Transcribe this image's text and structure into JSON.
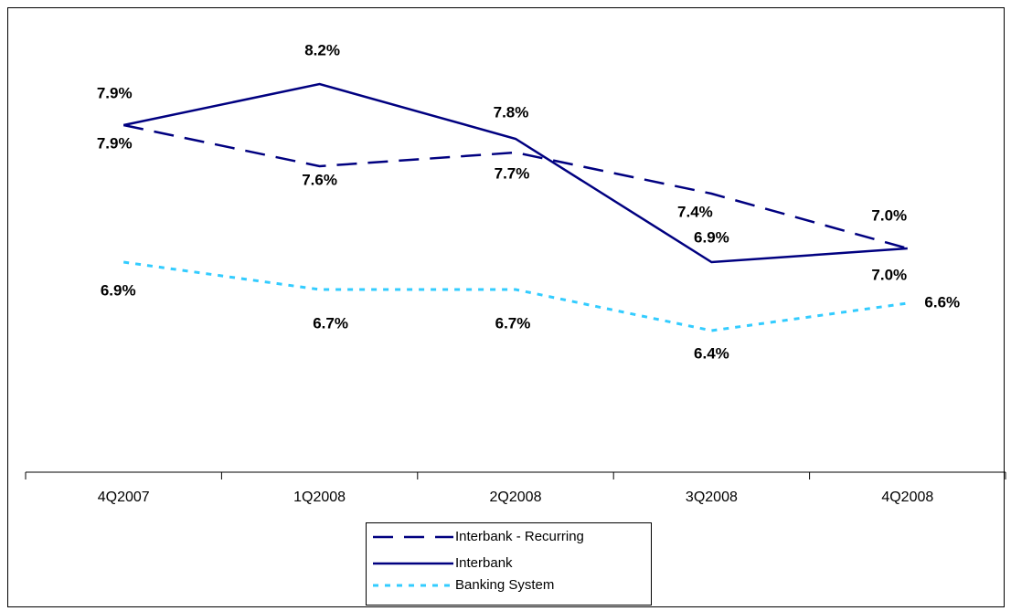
{
  "chart_data": {
    "type": "line",
    "categories": [
      "4Q2007",
      "1Q2008",
      "2Q2008",
      "3Q2008",
      "4Q2008"
    ],
    "series": [
      {
        "name": "Interbank - Recurring",
        "color": "#000080",
        "dash": "dashed",
        "values": [
          7.9,
          7.6,
          7.7,
          7.4,
          7.0
        ],
        "value_labels": [
          "7.9%",
          "7.6%",
          "7.7%",
          "7.4%",
          "7.0%"
        ]
      },
      {
        "name": "Interbank",
        "color": "#000080",
        "dash": "solid",
        "values": [
          7.9,
          8.2,
          7.8,
          6.9,
          7.0
        ],
        "value_labels": [
          "7.9%",
          "8.2%",
          "7.8%",
          "6.9%",
          "7.0%"
        ]
      },
      {
        "name": "Banking System",
        "color": "#33ccff",
        "dash": "dotted",
        "values": [
          6.9,
          6.7,
          6.7,
          6.4,
          6.6
        ],
        "value_labels": [
          "6.9%",
          "6.7%",
          "6.7%",
          "6.4%",
          "6.6%"
        ]
      }
    ],
    "legend": "bottom"
  }
}
